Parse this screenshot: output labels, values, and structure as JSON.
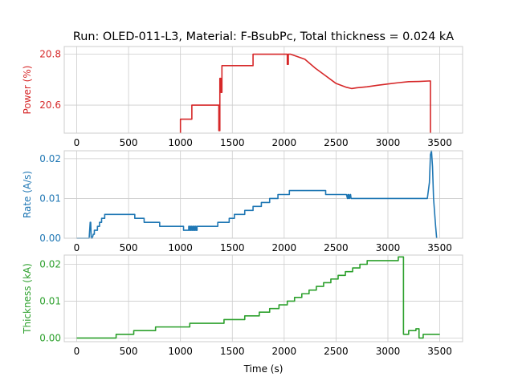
{
  "chart_data": {
    "type": "line",
    "title": "Run: OLED-011-L3, Material: F-BsubPc, Total thickness = 0.024 kA",
    "xlabel": "Time (s)",
    "x_ticks": [
      "0",
      "500",
      "1000",
      "1500",
      "2000",
      "2500",
      "3000",
      "3500"
    ],
    "x_tick_values": [
      0,
      500,
      1000,
      1500,
      2000,
      2500,
      3000,
      3500
    ],
    "xlim": [
      -120,
      3720
    ],
    "grid": true,
    "subplots": [
      {
        "ylabel": "Power (%)",
        "color": "#d62728",
        "ylim": [
          20.49,
          20.83
        ],
        "y_ticks": [
          "20.6",
          "20.8"
        ],
        "y_tick_values": [
          20.6,
          20.8
        ],
        "series": [
          {
            "points": [
              [
                1000,
                20.49
              ],
              [
                1000,
                20.545
              ],
              [
                1110,
                20.545
              ],
              [
                1110,
                20.6
              ],
              [
                1370,
                20.6
              ],
              [
                1370,
                20.5
              ],
              [
                1380,
                20.5
              ],
              [
                1380,
                20.705
              ],
              [
                1390,
                20.705
              ],
              [
                1390,
                20.65
              ],
              [
                1400,
                20.65
              ],
              [
                1400,
                20.755
              ],
              [
                1700,
                20.755
              ],
              [
                1700,
                20.8
              ],
              [
                2020,
                20.8
              ],
              [
                2030,
                20.8
              ],
              [
                2030,
                20.76
              ],
              [
                2040,
                20.76
              ],
              [
                2040,
                20.8
              ],
              [
                2060,
                20.8
              ],
              [
                2200,
                20.78
              ],
              [
                2300,
                20.745
              ],
              [
                2400,
                20.715
              ],
              [
                2500,
                20.685
              ],
              [
                2600,
                20.67
              ],
              [
                2650,
                20.665
              ],
              [
                2700,
                20.668
              ],
              [
                2800,
                20.672
              ],
              [
                2900,
                20.678
              ],
              [
                3000,
                20.683
              ],
              [
                3100,
                20.688
              ],
              [
                3200,
                20.692
              ],
              [
                3300,
                20.693
              ],
              [
                3410,
                20.695
              ],
              [
                3410,
                20.49
              ]
            ]
          }
        ]
      },
      {
        "ylabel": "Rate (A/s)",
        "color": "#1f77b4",
        "ylim": [
          0,
          0.022
        ],
        "y_ticks": [
          "0.00",
          "0.01",
          "0.02"
        ],
        "y_tick_values": [
          0,
          0.01,
          0.02
        ],
        "series": [
          {
            "points": [
              [
                0,
                0
              ],
              [
                50,
                0
              ],
              [
                60,
                0
              ],
              [
                120,
                0
              ],
              [
                130,
                0.004
              ],
              [
                135,
                0.004
              ],
              [
                140,
                0
              ],
              [
                150,
                0
              ],
              [
                160,
                0.001
              ],
              [
                170,
                0.001
              ],
              [
                170,
                0.002
              ],
              [
                200,
                0.002
              ],
              [
                200,
                0.003
              ],
              [
                220,
                0.003
              ],
              [
                220,
                0.004
              ],
              [
                240,
                0.004
              ],
              [
                240,
                0.005
              ],
              [
                270,
                0.005
              ],
              [
                270,
                0.006
              ],
              [
                350,
                0.006
              ],
              [
                350,
                0.006
              ],
              [
                560,
                0.006
              ],
              [
                560,
                0.005
              ],
              [
                600,
                0.005
              ],
              [
                600,
                0.005
              ],
              [
                650,
                0.005
              ],
              [
                650,
                0.004
              ],
              [
                800,
                0.004
              ],
              [
                800,
                0.003
              ],
              [
                1030,
                0.003
              ],
              [
                1030,
                0.002
              ],
              [
                1080,
                0.002
              ],
              [
                1080,
                0.003
              ],
              [
                1090,
                0.003
              ],
              [
                1090,
                0.002
              ],
              [
                1100,
                0.002
              ],
              [
                1100,
                0.003
              ],
              [
                1110,
                0.003
              ],
              [
                1110,
                0.002
              ],
              [
                1120,
                0.002
              ],
              [
                1120,
                0.003
              ],
              [
                1130,
                0.003
              ],
              [
                1130,
                0.002
              ],
              [
                1140,
                0.002
              ],
              [
                1140,
                0.003
              ],
              [
                1150,
                0.003
              ],
              [
                1150,
                0.002
              ],
              [
                1160,
                0.002
              ],
              [
                1160,
                0.003
              ],
              [
                1360,
                0.003
              ],
              [
                1360,
                0.004
              ],
              [
                1470,
                0.004
              ],
              [
                1470,
                0.005
              ],
              [
                1520,
                0.005
              ],
              [
                1520,
                0.006
              ],
              [
                1620,
                0.006
              ],
              [
                1620,
                0.007
              ],
              [
                1700,
                0.007
              ],
              [
                1700,
                0.008
              ],
              [
                1780,
                0.008
              ],
              [
                1780,
                0.009
              ],
              [
                1860,
                0.009
              ],
              [
                1860,
                0.01
              ],
              [
                1940,
                0.01
              ],
              [
                1940,
                0.011
              ],
              [
                2050,
                0.011
              ],
              [
                2050,
                0.012
              ],
              [
                2400,
                0.012
              ],
              [
                2400,
                0.011
              ],
              [
                2600,
                0.011
              ],
              [
                2610,
                0.01
              ],
              [
                2615,
                0.011
              ],
              [
                2620,
                0.01
              ],
              [
                2625,
                0.011
              ],
              [
                2630,
                0.01
              ],
              [
                2640,
                0.011
              ],
              [
                2645,
                0.01
              ],
              [
                3280,
                0.01
              ],
              [
                3300,
                0.01
              ],
              [
                3380,
                0.01
              ],
              [
                3400,
                0.014
              ],
              [
                3410,
                0.021
              ],
              [
                3420,
                0.023
              ],
              [
                3430,
                0.018
              ],
              [
                3440,
                0.01
              ],
              [
                3460,
                0.003
              ],
              [
                3470,
                0
              ]
            ]
          }
        ]
      },
      {
        "ylabel": "Thickness (kA)",
        "color": "#2ca02c",
        "ylim": [
          -0.001,
          0.0225
        ],
        "y_ticks": [
          "0.00",
          "0.01",
          "0.02"
        ],
        "y_tick_values": [
          0,
          0.01,
          0.02
        ],
        "series": [
          {
            "points": [
              [
                0,
                0
              ],
              [
                380,
                0
              ],
              [
                380,
                0.001
              ],
              [
                550,
                0.001
              ],
              [
                550,
                0.002
              ],
              [
                760,
                0.002
              ],
              [
                760,
                0.003
              ],
              [
                1090,
                0.003
              ],
              [
                1090,
                0.004
              ],
              [
                1420,
                0.004
              ],
              [
                1420,
                0.005
              ],
              [
                1620,
                0.005
              ],
              [
                1620,
                0.006
              ],
              [
                1760,
                0.006
              ],
              [
                1760,
                0.007
              ],
              [
                1860,
                0.007
              ],
              [
                1860,
                0.008
              ],
              [
                1950,
                0.008
              ],
              [
                1950,
                0.009
              ],
              [
                2030,
                0.009
              ],
              [
                2030,
                0.01
              ],
              [
                2100,
                0.01
              ],
              [
                2100,
                0.011
              ],
              [
                2170,
                0.011
              ],
              [
                2170,
                0.012
              ],
              [
                2240,
                0.012
              ],
              [
                2240,
                0.013
              ],
              [
                2310,
                0.013
              ],
              [
                2310,
                0.014
              ],
              [
                2380,
                0.014
              ],
              [
                2380,
                0.015
              ],
              [
                2450,
                0.015
              ],
              [
                2450,
                0.016
              ],
              [
                2520,
                0.016
              ],
              [
                2520,
                0.017
              ],
              [
                2590,
                0.017
              ],
              [
                2590,
                0.018
              ],
              [
                2660,
                0.018
              ],
              [
                2660,
                0.019
              ],
              [
                2730,
                0.019
              ],
              [
                2730,
                0.02
              ],
              [
                2800,
                0.02
              ],
              [
                2800,
                0.021
              ],
              [
                3100,
                0.021
              ],
              [
                3100,
                0.022
              ],
              [
                3150,
                0.022
              ],
              [
                3150,
                0.001
              ],
              [
                3200,
                0.001
              ],
              [
                3200,
                0.002
              ],
              [
                3270,
                0.002
              ],
              [
                3270,
                0.0025
              ],
              [
                3300,
                0.0025
              ],
              [
                3300,
                0.0
              ],
              [
                3340,
                0.0
              ],
              [
                3340,
                0.001
              ],
              [
                3500,
                0.001
              ]
            ]
          }
        ]
      }
    ]
  }
}
